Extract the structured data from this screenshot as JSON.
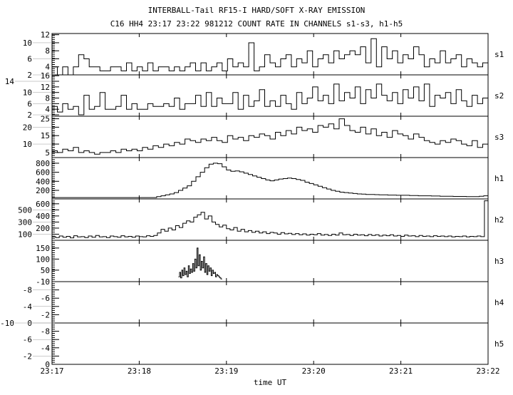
{
  "chart_data": {
    "type": "line",
    "title": "INTERBALL-Tail RF15-I HARD/SOFT X-RAY EMISSION",
    "subtitle": "C16 HH4 23:17 23:22 981212  COUNT RATE IN CHANNELS s1-s3, h1-h5",
    "xlabel": "time UT",
    "x_ticks": [
      "23:17",
      "23:18",
      "23:19",
      "23:20",
      "23:21",
      "23:22"
    ],
    "xlim_minutes": [
      0,
      5
    ],
    "panels": [
      {
        "name": "s1",
        "ylim": [
          2,
          12.3
        ],
        "ticks": [
          2,
          4,
          6,
          8,
          10,
          12
        ],
        "x_range": [
          0,
          5
        ],
        "values": [
          4,
          2,
          4,
          2,
          4,
          7,
          6,
          4,
          4,
          3,
          3,
          4,
          4,
          3,
          5,
          3,
          4,
          3,
          5,
          3,
          4,
          4,
          3,
          4,
          3,
          4,
          5,
          3,
          5,
          3,
          4,
          5,
          3,
          6,
          4,
          5,
          4,
          10,
          3,
          4,
          7,
          5,
          4,
          6,
          7,
          4,
          6,
          5,
          8,
          4,
          6,
          7,
          5,
          8,
          6,
          7,
          8,
          7,
          9,
          5,
          11,
          4,
          9,
          6,
          8,
          5,
          7,
          6,
          9,
          7,
          4,
          6,
          5,
          8,
          5,
          6,
          7,
          4,
          6,
          5,
          4,
          5
        ]
      },
      {
        "name": "s2",
        "ylim": [
          1.5,
          16.3
        ],
        "ticks": [
          2,
          4,
          6,
          8,
          10,
          12,
          14,
          16
        ],
        "x_range": [
          0,
          5
        ],
        "values": [
          5,
          3,
          6,
          4,
          5,
          2,
          9,
          4,
          5,
          10,
          4,
          4,
          5,
          9,
          4,
          6,
          4,
          4,
          6,
          5,
          5,
          6,
          5,
          8,
          4,
          6,
          6,
          9,
          5,
          10,
          5,
          8,
          6,
          6,
          10,
          4,
          9,
          5,
          7,
          11,
          5,
          7,
          5,
          9,
          6,
          4,
          10,
          6,
          8,
          12,
          7,
          9,
          6,
          13,
          7,
          10,
          8,
          12,
          6,
          11,
          8,
          13,
          9,
          7,
          10,
          6,
          11,
          8,
          12,
          7,
          13,
          5,
          9,
          8,
          10,
          6,
          11,
          7,
          5,
          9,
          6,
          8
        ]
      },
      {
        "name": "s3",
        "ylim": [
          2,
          26.5
        ],
        "ticks": [
          5,
          10,
          15,
          20,
          25
        ],
        "x_range": [
          0,
          5
        ],
        "values": [
          6,
          5,
          7,
          6,
          8,
          5,
          6,
          5,
          4,
          5,
          5,
          6,
          5,
          7,
          6,
          7,
          6,
          8,
          7,
          9,
          8,
          10,
          9,
          11,
          10,
          13,
          12,
          11,
          13,
          12,
          14,
          12,
          11,
          15,
          13,
          14,
          12,
          15,
          14,
          16,
          15,
          13,
          17,
          15,
          18,
          16,
          20,
          18,
          19,
          17,
          21,
          20,
          22,
          19,
          25,
          21,
          18,
          17,
          20,
          16,
          19,
          15,
          17,
          14,
          18,
          16,
          15,
          13,
          16,
          14,
          12,
          11,
          10,
          12,
          11,
          13,
          12,
          10,
          9,
          12,
          8,
          10
        ]
      },
      {
        "name": "h1",
        "ylim": [
          10,
          925
        ],
        "ticks": [
          200,
          400,
          600,
          800
        ],
        "x_range": [
          0,
          5
        ],
        "values": [
          40,
          40,
          40,
          40,
          40,
          40,
          40,
          40,
          40,
          40,
          40,
          40,
          40,
          40,
          40,
          40,
          40,
          40,
          40,
          40,
          40,
          40,
          40,
          40,
          60,
          80,
          100,
          120,
          150,
          200,
          250,
          300,
          400,
          500,
          600,
          700,
          780,
          800,
          790,
          720,
          650,
          620,
          630,
          610,
          580,
          550,
          520,
          490,
          460,
          430,
          410,
          430,
          450,
          460,
          470,
          460,
          440,
          420,
          380,
          350,
          320,
          290,
          260,
          230,
          200,
          180,
          160,
          150,
          140,
          130,
          120,
          115,
          110,
          110,
          105,
          100,
          100,
          95,
          95,
          90,
          90,
          90,
          85,
          85,
          80,
          80,
          80,
          75,
          75,
          70,
          70,
          70,
          65,
          65,
          65,
          60,
          60,
          60,
          70,
          80
        ]
      },
      {
        "name": "h2",
        "ylim": [
          0,
          680
        ],
        "ticks": [
          100,
          200,
          300,
          400,
          500,
          600
        ],
        "x_range": [
          0,
          5
        ],
        "values": [
          60,
          45,
          70,
          50,
          65,
          40,
          75,
          55,
          60,
          45,
          70,
          50,
          80,
          55,
          60,
          45,
          70,
          60,
          50,
          75,
          55,
          65,
          50,
          70,
          60,
          55,
          75,
          65,
          80,
          120,
          180,
          150,
          200,
          170,
          240,
          210,
          280,
          320,
          300,
          380,
          420,
          460,
          350,
          400,
          300,
          260,
          220,
          250,
          190,
          170,
          210,
          150,
          180,
          140,
          160,
          130,
          150,
          120,
          140,
          110,
          130,
          120,
          100,
          125,
          105,
          115,
          95,
          110,
          90,
          105,
          85,
          100,
          90,
          110,
          85,
          95,
          80,
          100,
          85,
          120,
          90,
          95,
          80,
          100,
          85,
          90,
          75,
          95,
          80,
          90,
          70,
          85,
          75,
          90,
          70,
          80,
          65,
          85,
          70,
          75,
          60,
          80,
          65,
          70,
          60,
          75,
          65,
          70,
          60,
          70,
          55,
          65,
          60,
          70,
          55,
          65,
          60,
          70,
          60,
          650
        ]
      },
      {
        "name": "h3",
        "ylim": [
          -2,
          185
        ],
        "ticks": [
          50,
          100,
          150
        ],
        "x_range": [
          1.45,
          1.95
        ],
        "values": [
          20,
          40,
          15,
          50,
          25,
          60,
          30,
          45,
          20,
          70,
          35,
          55,
          40,
          80,
          45,
          100,
          60,
          150,
          70,
          120,
          50,
          90,
          60,
          110,
          40,
          80,
          30,
          70,
          45,
          60,
          25,
          50,
          35,
          40,
          20,
          30,
          25,
          20,
          15,
          10
        ]
      },
      {
        "name": "h4",
        "ylim": [
          0,
          -10
        ],
        "ticks": [
          0,
          -2,
          -4,
          -6,
          -8,
          -10
        ],
        "x_range": [
          0,
          5
        ],
        "values": []
      },
      {
        "name": "h5",
        "ylim": [
          0,
          -10
        ],
        "ticks": [
          0,
          -2,
          -4,
          -6,
          -8,
          -10
        ],
        "x_range": [
          0,
          5
        ],
        "values": []
      }
    ]
  }
}
